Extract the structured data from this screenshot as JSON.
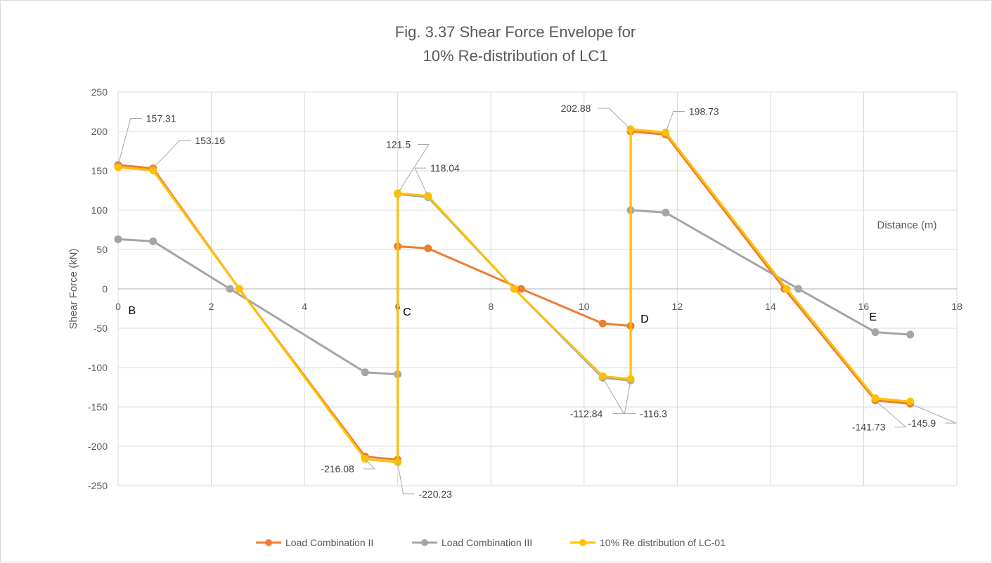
{
  "chart_data": {
    "type": "line",
    "title_lines": [
      "Fig. 3.37 Shear Force Envelope for",
      "10%  Re-distribution of LC1"
    ],
    "xlabel": "Distance (m)",
    "ylabel": "Shear Force (kN)",
    "xlim": [
      0,
      18
    ],
    "ylim": [
      -250,
      250
    ],
    "x_ticks": [
      0,
      2,
      4,
      6,
      8,
      10,
      12,
      14,
      16,
      18
    ],
    "y_ticks": [
      250,
      200,
      150,
      100,
      50,
      0,
      -50,
      -100,
      -150,
      -200,
      -250
    ],
    "grid": true,
    "legend_position": "bottom",
    "support_labels": [
      {
        "text": "B",
        "x": 0.3,
        "y": -32
      },
      {
        "text": "C",
        "x": 6.2,
        "y": -34
      },
      {
        "text": "D",
        "x": 11.3,
        "y": -43
      },
      {
        "text": "E",
        "x": 16.2,
        "y": -40
      }
    ],
    "series": [
      {
        "name": "Load Combination II",
        "color": "#ED7D31",
        "points": [
          [
            0,
            157.31
          ],
          [
            0.75,
            153.16
          ],
          [
            2.6,
            0
          ],
          [
            5.3,
            -213
          ],
          [
            6,
            -217
          ],
          [
            6,
            54
          ],
          [
            6.65,
            51.5
          ],
          [
            8.65,
            0
          ],
          [
            10.4,
            -44
          ],
          [
            11,
            -47
          ],
          [
            11,
            200
          ],
          [
            11.75,
            196
          ],
          [
            14.3,
            0
          ],
          [
            16.25,
            -141.73
          ],
          [
            17,
            -145.9
          ]
        ]
      },
      {
        "name": "Load Combination III",
        "color": "#A5A5A5",
        "points": [
          [
            0,
            63
          ],
          [
            0.75,
            60.5
          ],
          [
            2.4,
            0
          ],
          [
            5.3,
            -106
          ],
          [
            6,
            -108.5
          ],
          [
            6,
            120.5
          ],
          [
            6.65,
            116.5
          ],
          [
            8.5,
            0
          ],
          [
            10.4,
            -112.84
          ],
          [
            11,
            -116.3
          ],
          [
            11,
            100
          ],
          [
            11.75,
            97
          ],
          [
            14.6,
            0
          ],
          [
            16.25,
            -55
          ],
          [
            17,
            -58
          ]
        ]
      },
      {
        "name": "10% Re distribution of LC-01",
        "color": "#FFC000",
        "points": [
          [
            0,
            154.5
          ],
          [
            0.75,
            150.5
          ],
          [
            2.6,
            0
          ],
          [
            5.3,
            -216.08
          ],
          [
            6,
            -220.23
          ],
          [
            6,
            121.5
          ],
          [
            6.65,
            118.04
          ],
          [
            8.5,
            0
          ],
          [
            10.4,
            -111
          ],
          [
            11,
            -114.5
          ],
          [
            11,
            202.88
          ],
          [
            11.75,
            198.73
          ],
          [
            14.35,
            0
          ],
          [
            16.25,
            -139
          ],
          [
            17,
            -143
          ]
        ]
      }
    ],
    "data_labels": [
      {
        "text": "157.31",
        "x": 0,
        "y": 157.31,
        "lx": 0.6,
        "ly": 212
      },
      {
        "text": "153.16",
        "x": 0.75,
        "y": 153.16,
        "lx": 1.65,
        "ly": 184
      },
      {
        "text": "121.5",
        "x": 6,
        "y": 121.5,
        "lx": 5.75,
        "ly": 179
      },
      {
        "text": "118.04",
        "x": 6.65,
        "y": 118.04,
        "lx": 6.7,
        "ly": 149
      },
      {
        "text": "202.88",
        "x": 11,
        "y": 202.88,
        "lx": 9.5,
        "ly": 225
      },
      {
        "text": "198.73",
        "x": 11.75,
        "y": 198.73,
        "lx": 12.25,
        "ly": 221
      },
      {
        "text": "-216.08",
        "x": 5.3,
        "y": -216.08,
        "lx": 4.35,
        "ly": -233
      },
      {
        "text": "-220.23",
        "x": 6,
        "y": -220.23,
        "lx": 6.45,
        "ly": -265
      },
      {
        "text": "-112.84",
        "x": 10.4,
        "y": -112.84,
        "lx": 9.7,
        "ly": -163
      },
      {
        "text": "-116.3",
        "x": 11,
        "y": -116.3,
        "lx": 11.2,
        "ly": -163
      },
      {
        "text": "-141.73",
        "x": 16.25,
        "y": -141.73,
        "lx": 15.75,
        "ly": -180
      },
      {
        "text": "-145.9",
        "x": 17,
        "y": -145.9,
        "lx": 16.95,
        "ly": -175
      }
    ]
  }
}
